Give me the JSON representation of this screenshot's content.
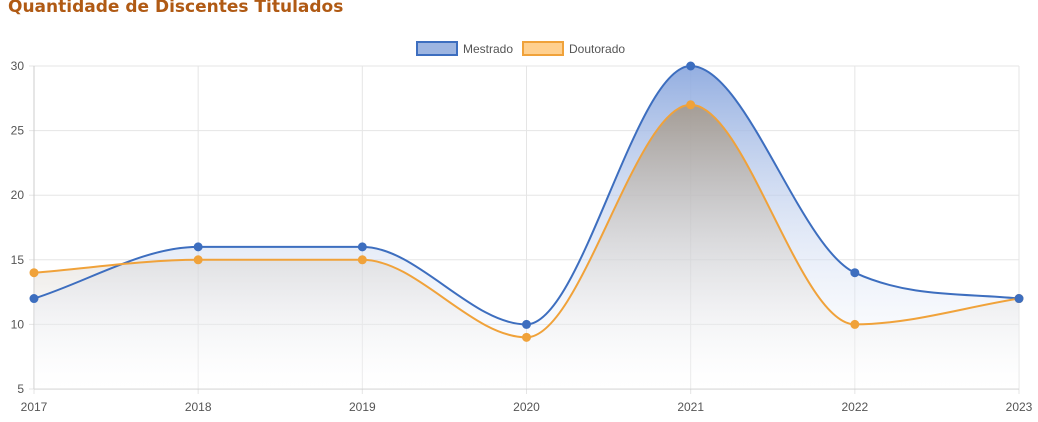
{
  "title": "Quantidade de Discentes Titulados",
  "chart_data": {
    "type": "area",
    "x": [
      "2017",
      "2018",
      "2019",
      "2020",
      "2021",
      "2022",
      "2023"
    ],
    "series": [
      {
        "name": "Mestrado",
        "values": [
          12,
          16,
          16,
          10,
          30,
          14,
          12
        ],
        "color": "#3d6ebf",
        "fill": "#9db5e1"
      },
      {
        "name": "Doutorado",
        "values": [
          14,
          15,
          15,
          9,
          27,
          10,
          12
        ],
        "color": "#f0a23a",
        "fill": "#ffd08f"
      }
    ],
    "ylim": [
      5,
      30
    ],
    "yticks": [
      5,
      10,
      15,
      20,
      25,
      30
    ],
    "grid": true,
    "legend": "top-center"
  }
}
